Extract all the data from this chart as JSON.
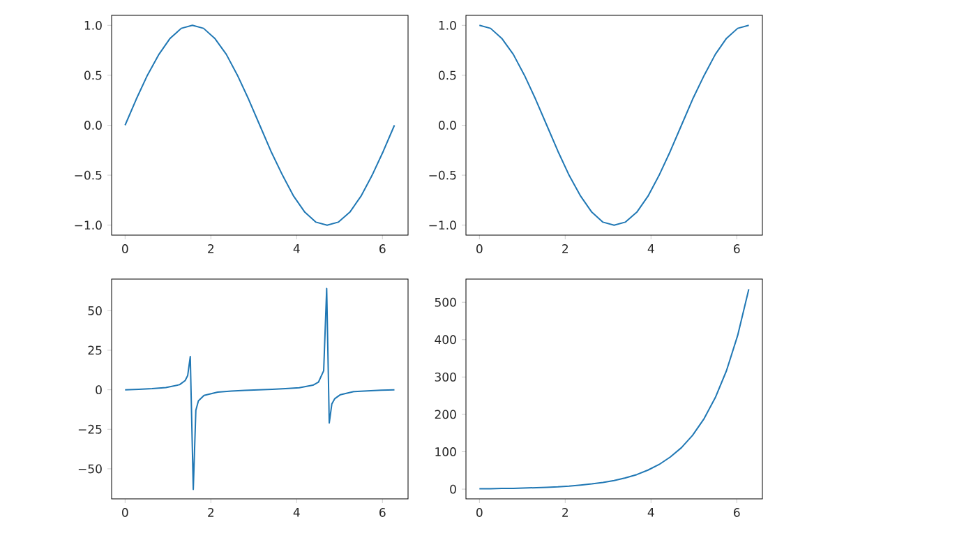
{
  "chart_data": [
    {
      "type": "line",
      "color": "#1f77b4",
      "xlim": [
        -0.314,
        6.597
      ],
      "ylim": [
        -1.1,
        1.1
      ],
      "xticks": [
        0,
        2,
        4,
        6
      ],
      "yticks": [
        {
          "value": -1,
          "label": "−1.0"
        },
        {
          "value": -0.5,
          "label": "−0.5"
        },
        {
          "value": 0,
          "label": "0.0"
        },
        {
          "value": 0.5,
          "label": "0.5"
        },
        {
          "value": 1,
          "label": "1.0"
        }
      ],
      "x": [
        0,
        0.26,
        0.52,
        0.79,
        1.05,
        1.31,
        1.57,
        1.83,
        2.09,
        2.36,
        2.62,
        2.88,
        3.14,
        3.4,
        3.67,
        3.93,
        4.19,
        4.45,
        4.71,
        4.97,
        5.24,
        5.5,
        5.76,
        6.02,
        6.28
      ],
      "values": [
        0,
        0.26,
        0.5,
        0.71,
        0.87,
        0.97,
        1,
        0.97,
        0.87,
        0.71,
        0.5,
        0.26,
        0,
        -0.26,
        -0.5,
        -0.71,
        -0.87,
        -0.97,
        -1,
        -0.97,
        -0.87,
        -0.71,
        -0.5,
        -0.26,
        0
      ]
    },
    {
      "type": "line",
      "color": "#1f77b4",
      "xlim": [
        -0.314,
        6.597
      ],
      "ylim": [
        -1.1,
        1.1
      ],
      "xticks": [
        0,
        2,
        4,
        6
      ],
      "yticks": [
        {
          "value": -1,
          "label": "−1.0"
        },
        {
          "value": -0.5,
          "label": "−0.5"
        },
        {
          "value": 0,
          "label": "0.0"
        },
        {
          "value": 0.5,
          "label": "0.5"
        },
        {
          "value": 1,
          "label": "1.0"
        }
      ],
      "x": [
        0,
        0.26,
        0.52,
        0.79,
        1.05,
        1.31,
        1.57,
        1.83,
        2.09,
        2.36,
        2.62,
        2.88,
        3.14,
        3.4,
        3.67,
        3.93,
        4.19,
        4.45,
        4.71,
        4.97,
        5.24,
        5.5,
        5.76,
        6.02,
        6.28
      ],
      "values": [
        1,
        0.97,
        0.87,
        0.71,
        0.5,
        0.26,
        0,
        -0.26,
        -0.5,
        -0.71,
        -0.87,
        -0.97,
        -1,
        -0.97,
        -0.87,
        -0.71,
        -0.5,
        -0.26,
        0,
        0.26,
        0.5,
        0.71,
        0.87,
        0.97,
        1
      ]
    },
    {
      "type": "line",
      "color": "#1f77b4",
      "xlim": [
        -0.314,
        6.597
      ],
      "ylim": [
        -69,
        70
      ],
      "xticks": [
        0,
        2,
        4,
        6
      ],
      "yticks": [
        {
          "value": -50,
          "label": "−50"
        },
        {
          "value": -25,
          "label": "−25"
        },
        0,
        25,
        50
      ],
      "x": [
        0,
        0.32,
        0.63,
        0.95,
        1.27,
        1.4,
        1.46,
        1.52,
        1.59,
        1.65,
        1.71,
        1.84,
        2.16,
        2.48,
        2.79,
        3.11,
        3.43,
        3.74,
        4.06,
        4.38,
        4.51,
        4.63,
        4.7,
        4.76,
        4.82,
        4.89,
        5.02,
        5.33,
        5.65,
        5.97,
        6.28
      ],
      "values": [
        0,
        0.3,
        0.7,
        1.4,
        3.2,
        5.8,
        9,
        21,
        -63,
        -13,
        -7,
        -3.6,
        -1.5,
        -0.8,
        -0.4,
        0,
        0.3,
        0.7,
        1.3,
        2.9,
        4.9,
        12,
        64,
        -21,
        -9,
        -5.6,
        -3.1,
        -1.2,
        -0.7,
        -0.3,
        0
      ]
    },
    {
      "type": "line",
      "color": "#1f77b4",
      "xlim": [
        -0.314,
        6.597
      ],
      "ylim": [
        -26,
        562
      ],
      "xticks": [
        0,
        2,
        4,
        6
      ],
      "yticks": [
        0,
        100,
        200,
        300,
        400,
        500
      ],
      "x": [
        0,
        0.26,
        0.52,
        0.79,
        1.05,
        1.31,
        1.57,
        1.83,
        2.09,
        2.36,
        2.62,
        2.88,
        3.14,
        3.4,
        3.67,
        3.93,
        4.19,
        4.45,
        4.71,
        4.97,
        5.24,
        5.5,
        5.76,
        6.02,
        6.28
      ],
      "values": [
        1,
        1,
        2,
        2,
        3,
        4,
        5,
        6,
        8,
        11,
        14,
        18,
        23,
        30,
        39,
        51,
        66,
        86,
        111,
        144,
        189,
        245,
        317,
        411,
        535
      ]
    }
  ]
}
